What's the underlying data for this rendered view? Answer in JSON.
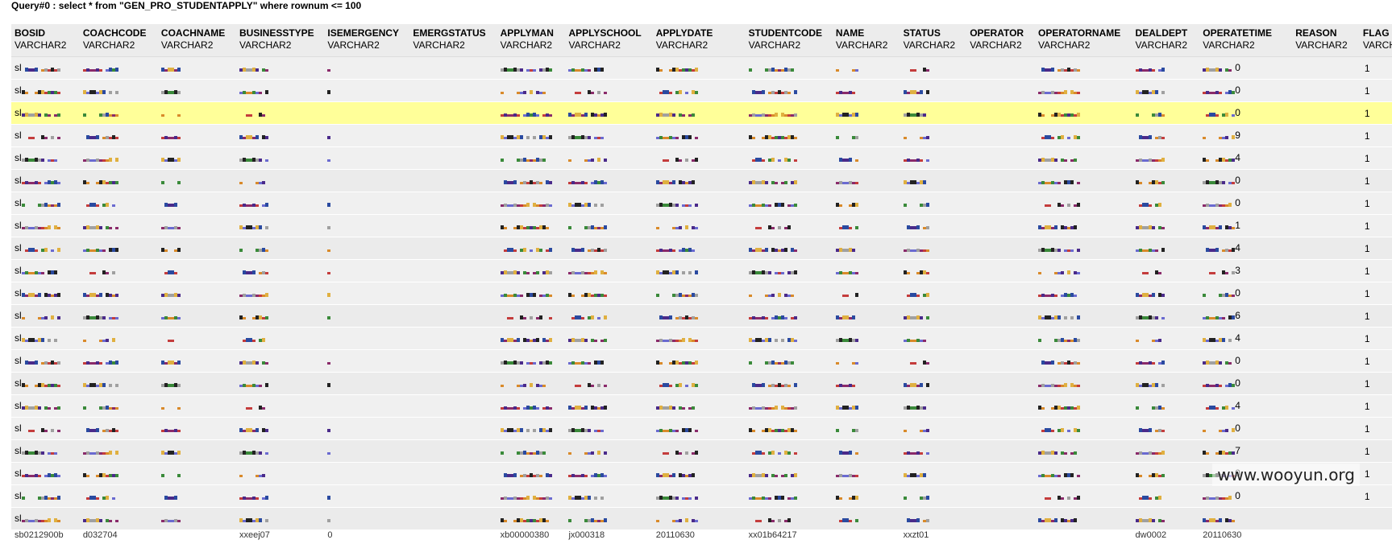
{
  "query_title": "Query#0 : select * from \"GEN_PRO_STUDENTAPPLY\" where rownum <= 100",
  "columns": [
    {
      "name": "BOSID",
      "type": "VARCHAR2"
    },
    {
      "name": "COACHCODE",
      "type": "VARCHAR2"
    },
    {
      "name": "COACHNAME",
      "type": "VARCHAR2"
    },
    {
      "name": "BUSINESSTYPE",
      "type": "VARCHAR2"
    },
    {
      "name": "ISEMERGENCY",
      "type": "VARCHAR2"
    },
    {
      "name": "EMERGSTATUS",
      "type": "VARCHAR2"
    },
    {
      "name": "APPLYMAN",
      "type": "VARCHAR2"
    },
    {
      "name": "APPLYSCHOOL",
      "type": "VARCHAR2"
    },
    {
      "name": "APPLYDATE",
      "type": "VARCHAR2"
    },
    {
      "name": "STUDENTCODE",
      "type": "VARCHAR2"
    },
    {
      "name": "NAME",
      "type": "VARCHAR2"
    },
    {
      "name": "STATUS",
      "type": "VARCHAR2"
    },
    {
      "name": "OPERATOR",
      "type": "VARCHAR2"
    },
    {
      "name": "OPERATORNAME",
      "type": "VARCHAR2"
    },
    {
      "name": "DEALDEPT",
      "type": "VARCHAR2"
    },
    {
      "name": "OPERATETIME",
      "type": "VARCHAR2"
    },
    {
      "name": "REASON",
      "type": "VARCHAR2"
    },
    {
      "name": "FLAG",
      "type": "VARCHAR2"
    }
  ],
  "rows": [
    {
      "bosid": "sl",
      "operatetime": "0",
      "flag": "1"
    },
    {
      "bosid": "sl",
      "operatetime": "0",
      "flag": "1"
    },
    {
      "bosid": "sl",
      "operatetime": "0",
      "flag": "1",
      "highlighted": true
    },
    {
      "bosid": "sl",
      "operatetime": "9",
      "flag": "1"
    },
    {
      "bosid": "sl",
      "operatetime": "4",
      "flag": "1"
    },
    {
      "bosid": "sl",
      "operatetime": "0",
      "flag": "1"
    },
    {
      "bosid": "sl",
      "operatetime": "0",
      "flag": "1"
    },
    {
      "bosid": "sl",
      "operatetime": "1",
      "flag": "1"
    },
    {
      "bosid": "sl",
      "operatetime": "4",
      "flag": "1"
    },
    {
      "bosid": "sl",
      "operatetime": "3",
      "flag": "1"
    },
    {
      "bosid": "sl",
      "operatetime": "0",
      "flag": "1"
    },
    {
      "bosid": "sl",
      "operatetime": "6",
      "flag": "1"
    },
    {
      "bosid": "sl",
      "operatetime": "4",
      "flag": "1"
    },
    {
      "bosid": "sl",
      "operatetime": "0",
      "flag": "1"
    },
    {
      "bosid": "sl",
      "operatetime": "0",
      "flag": "1"
    },
    {
      "bosid": "sl",
      "operatetime": "4",
      "flag": "1"
    },
    {
      "bosid": "sl",
      "operatetime": "0",
      "flag": "1"
    },
    {
      "bosid": "sl",
      "operatetime": "7",
      "flag": "1"
    },
    {
      "bosid": "sl",
      "operatetime": "0",
      "flag": "1"
    },
    {
      "bosid": "sl",
      "operatetime": "0",
      "flag": "1"
    },
    {
      "bosid": "sl",
      "operatetime": "",
      "flag": ""
    }
  ],
  "partial_row": {
    "bosid": "sb0212900b",
    "coachcode": "d032704",
    "businesstype": "xxeej07",
    "isemergency": "0",
    "applyman": "xb00000380",
    "applyschool": "jx000318",
    "applydate": "20110630",
    "studentcode": "xx01b64217",
    "status": "xxzt01",
    "dealdept": "dw0002",
    "operatetime": "20110630"
  },
  "colors": {
    "highlight_row": "#ffff99",
    "header_bg": "#ececec",
    "row_bg": "#f0f0f0"
  },
  "watermark": "www.wooyun.org"
}
